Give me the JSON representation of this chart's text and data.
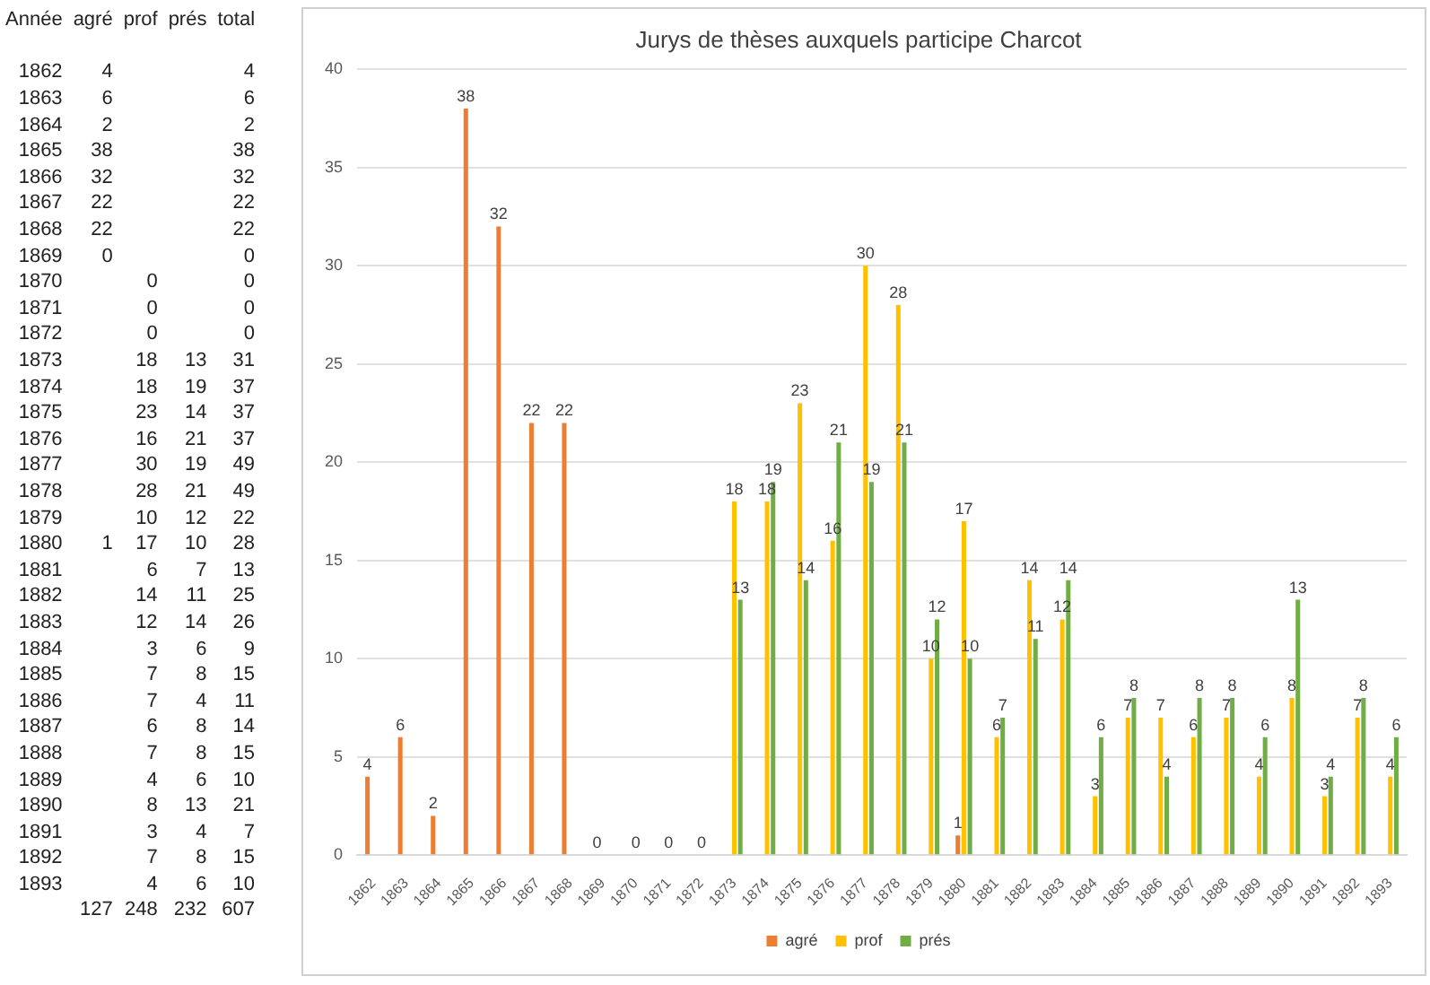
{
  "chart_data": [
    {
      "type": "heatmap",
      "ylabel": "Année",
      "categories": [
        "agré",
        "prof",
        "prés",
        "total"
      ],
      "y_categories": [
        "1862",
        "1863",
        "1864",
        "1865",
        "1866",
        "1867",
        "1868",
        "1869",
        "1870",
        "1871",
        "1872",
        "1873",
        "1874",
        "1875",
        "1876",
        "1877",
        "1878",
        "1879",
        "1880",
        "1881",
        "1882",
        "1883",
        "1884",
        "1885",
        "1886",
        "1887",
        "1888",
        "1889",
        "1890",
        "1891",
        "1892",
        "1893",
        null
      ],
      "cells": [
        [
          4,
          null,
          null,
          4
        ],
        [
          6,
          null,
          null,
          6
        ],
        [
          2,
          null,
          null,
          2
        ],
        [
          38,
          null,
          null,
          38
        ],
        [
          32,
          null,
          null,
          32
        ],
        [
          22,
          null,
          null,
          22
        ],
        [
          22,
          null,
          null,
          22
        ],
        [
          0,
          null,
          null,
          0
        ],
        [
          null,
          0,
          null,
          0
        ],
        [
          null,
          0,
          null,
          0
        ],
        [
          null,
          0,
          null,
          0
        ],
        [
          null,
          18,
          13,
          31
        ],
        [
          null,
          18,
          19,
          37
        ],
        [
          null,
          23,
          14,
          37
        ],
        [
          null,
          16,
          21,
          37
        ],
        [
          null,
          30,
          19,
          49
        ],
        [
          null,
          28,
          21,
          49
        ],
        [
          null,
          10,
          12,
          22
        ],
        [
          1,
          17,
          10,
          28
        ],
        [
          null,
          6,
          7,
          13
        ],
        [
          null,
          14,
          11,
          25
        ],
        [
          null,
          12,
          14,
          26
        ],
        [
          null,
          3,
          6,
          9
        ],
        [
          null,
          7,
          8,
          15
        ],
        [
          null,
          7,
          4,
          11
        ],
        [
          null,
          6,
          8,
          14
        ],
        [
          null,
          7,
          8,
          15
        ],
        [
          null,
          4,
          6,
          10
        ],
        [
          null,
          8,
          13,
          21
        ],
        [
          null,
          3,
          4,
          7
        ],
        [
          null,
          7,
          8,
          15
        ],
        [
          null,
          4,
          6,
          10
        ],
        [
          127,
          248,
          232,
          607
        ]
      ],
      "data_labels": true
    },
    {
      "type": "bar",
      "title": "Jurys de thèses auxquels participe Charcot",
      "categories": [
        "1862",
        "1863",
        "1864",
        "1865",
        "1866",
        "1867",
        "1868",
        "1869",
        "1870",
        "1871",
        "1872",
        "1873",
        "1874",
        "1875",
        "1876",
        "1877",
        "1878",
        "1879",
        "1880",
        "1881",
        "1882",
        "1883",
        "1884",
        "1885",
        "1886",
        "1887",
        "1888",
        "1889",
        "1890",
        "1891",
        "1892",
        "1893"
      ],
      "series": [
        {
          "name": "agré",
          "color": "#ed7d31",
          "values": [
            4,
            6,
            2,
            38,
            32,
            22,
            22,
            0,
            null,
            null,
            null,
            null,
            null,
            null,
            null,
            null,
            null,
            null,
            1,
            null,
            null,
            null,
            null,
            null,
            null,
            null,
            null,
            null,
            null,
            null,
            null,
            null
          ]
        },
        {
          "name": "prof",
          "color": "#ffc000",
          "values": [
            null,
            null,
            null,
            null,
            null,
            null,
            null,
            null,
            0,
            0,
            0,
            18,
            18,
            23,
            16,
            30,
            28,
            10,
            17,
            6,
            14,
            12,
            3,
            7,
            7,
            6,
            7,
            4,
            8,
            3,
            7,
            4
          ]
        },
        {
          "name": "prés",
          "color": "#70ad47",
          "values": [
            null,
            null,
            null,
            null,
            null,
            null,
            null,
            null,
            null,
            null,
            null,
            13,
            19,
            14,
            21,
            19,
            21,
            12,
            10,
            7,
            11,
            14,
            6,
            8,
            4,
            8,
            8,
            6,
            13,
            4,
            8,
            6
          ]
        }
      ],
      "ylim": [
        0,
        40
      ],
      "yticks": [
        0,
        5,
        10,
        15,
        20,
        25,
        30,
        35,
        40
      ],
      "grid": "y",
      "legend": "bottom",
      "data_labels": true
    }
  ]
}
